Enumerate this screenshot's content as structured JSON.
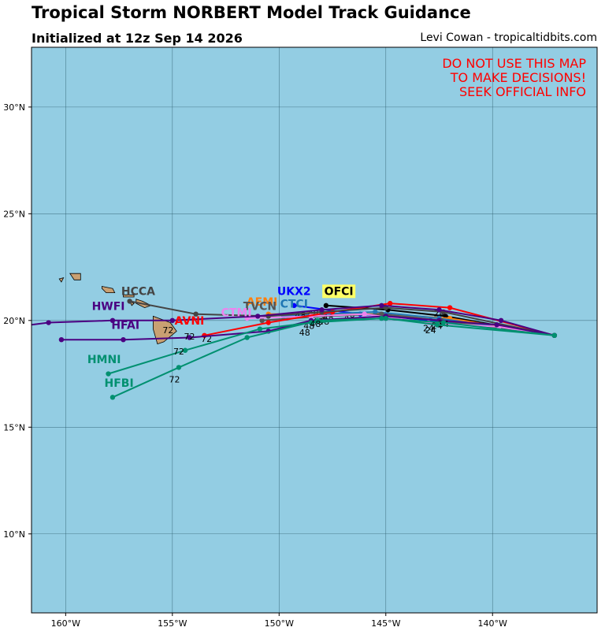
{
  "header": {
    "title": "Tropical Storm NORBERT Model Track Guidance",
    "init": "Initialized at 12z Sep 14 2026",
    "credit": "Levi Cowan - tropicaltidbits.com"
  },
  "warning": [
    "DO NOT USE THIS MAP",
    "TO MAKE DECISIONS!",
    "SEEK OFFICIAL INFO"
  ],
  "colors": {
    "ocean": "#93cde3",
    "land": "#c9a072",
    "warning": "#ff0000"
  },
  "map": {
    "lon_range": [
      -161.6,
      -135.1
    ],
    "lat_range": [
      6.3,
      32.8
    ],
    "lon_ticks": [
      -160,
      -155,
      -150,
      -145,
      -140
    ],
    "lon_tick_labels": [
      "160°W",
      "155°W",
      "150°W",
      "145°W",
      "140°W"
    ],
    "lat_ticks": [
      10,
      15,
      20,
      25,
      30
    ],
    "lat_tick_labels": [
      "10°N",
      "15°N",
      "20°N",
      "25°N",
      "30°N"
    ]
  },
  "islands": [
    [
      [
        -159.8,
        22.2
      ],
      [
        -159.3,
        22.2
      ],
      [
        -159.3,
        21.9
      ],
      [
        -159.6,
        21.9
      ]
    ],
    [
      [
        -160.3,
        21.95
      ],
      [
        -160.1,
        22.0
      ],
      [
        -160.2,
        21.8
      ]
    ],
    [
      [
        -158.3,
        21.6
      ],
      [
        -157.8,
        21.5
      ],
      [
        -157.7,
        21.3
      ],
      [
        -158.1,
        21.3
      ],
      [
        -158.3,
        21.5
      ]
    ],
    [
      [
        -157.3,
        21.2
      ],
      [
        -156.8,
        21.2
      ],
      [
        -156.8,
        21.1
      ],
      [
        -157.3,
        21.1
      ]
    ],
    [
      [
        -157.0,
        20.9
      ],
      [
        -156.8,
        20.8
      ],
      [
        -156.9,
        20.7
      ]
    ],
    [
      [
        -156.7,
        21.0
      ],
      [
        -156.4,
        20.9
      ],
      [
        -156.0,
        20.7
      ],
      [
        -156.3,
        20.6
      ],
      [
        -156.7,
        20.8
      ]
    ],
    [
      [
        -155.9,
        20.2
      ],
      [
        -155.1,
        19.9
      ],
      [
        -154.8,
        19.5
      ],
      [
        -155.4,
        19.0
      ],
      [
        -155.7,
        18.9
      ],
      [
        -155.9,
        19.6
      ]
    ]
  ],
  "models": [
    {
      "name": "OFCI",
      "color": "#000000",
      "points": [
        [
          -137.1,
          19.3
        ],
        [
          -142.2,
          20.2
        ],
        [
          -144.9,
          20.5
        ],
        [
          -147.8,
          20.7
        ]
      ],
      "hour_labels": [
        {
          "t": "24",
          "lon": -142.5,
          "lat": 20.2
        }
      ],
      "name_lon": -147.2,
      "name_lat": 21.2,
      "name_bg": "#ffff66"
    },
    {
      "name": "UKX2",
      "color": "#0000ff",
      "points": [
        [
          -137.1,
          19.3
        ],
        [
          -139.9,
          19.7
        ],
        [
          -142.9,
          20.0
        ],
        [
          -146.2,
          20.3
        ],
        [
          -149.3,
          20.7
        ]
      ],
      "hour_labels": [
        {
          "t": "24",
          "lon": -143.0,
          "lat": 19.5
        },
        {
          "t": "48",
          "lon": -146.7,
          "lat": 20.0
        }
      ],
      "name_lon": -149.3,
      "name_lat": 21.2
    },
    {
      "name": "AEMI",
      "color": "#ff7f0e",
      "points": [
        [
          -137.1,
          19.3
        ],
        [
          -142.0,
          20.1
        ],
        [
          -145.3,
          20.3
        ],
        [
          -148.6,
          20.3
        ],
        [
          -150.5,
          20.3
        ]
      ],
      "hour_labels": [
        {
          "t": "48",
          "lon": -148.4,
          "lat": 20.2
        }
      ],
      "name_lon": -150.8,
      "name_lat": 20.7
    },
    {
      "name": "CTCI",
      "color": "#1f77b4",
      "points": [
        [
          -137.1,
          19.3
        ],
        [
          -142.5,
          20.1
        ],
        [
          -145.5,
          20.4
        ],
        [
          -148.0,
          20.3
        ],
        [
          -149.8,
          20.2
        ]
      ],
      "hour_labels": [
        {
          "t": "48",
          "lon": -149.0,
          "lat": 20.1
        }
      ],
      "name_lon": -149.3,
      "name_lat": 20.6
    },
    {
      "name": "TVCN",
      "color": "#555555",
      "points": [
        [
          -137.1,
          19.3
        ],
        [
          -142.4,
          20.0
        ],
        [
          -145.2,
          20.3
        ],
        [
          -147.9,
          20.2
        ],
        [
          -150.8,
          20.0
        ]
      ],
      "hour_labels": [
        {
          "t": "48",
          "lon": -147.7,
          "lat": 20.0
        }
      ],
      "name_lon": -150.9,
      "name_lat": 20.5
    },
    {
      "name": "CTMI",
      "color": "#ee82ee",
      "points": [
        [
          -137.1,
          19.3
        ],
        [
          -139.7,
          19.7
        ],
        [
          -143.0,
          19.9
        ],
        [
          -146.0,
          20.3
        ],
        [
          -148.5,
          20.2
        ],
        [
          -151.5,
          20.1
        ]
      ],
      "hour_labels": [
        {
          "t": "48",
          "lon": -148.2,
          "lat": 19.8
        }
      ],
      "name_lon": -152.0,
      "name_lat": 20.2
    },
    {
      "name": "AVNI",
      "color": "#ff0000",
      "points": [
        [
          -137.1,
          19.3
        ],
        [
          -142.0,
          20.6
        ],
        [
          -144.8,
          20.8
        ],
        [
          -147.5,
          20.4
        ],
        [
          -150.5,
          19.9
        ],
        [
          -153.5,
          19.3
        ]
      ],
      "hour_labels": [
        {
          "t": "48",
          "lon": -147.9,
          "lat": 19.8
        },
        {
          "t": "72",
          "lon": -153.4,
          "lat": 19.0
        }
      ],
      "name_lon": -154.2,
      "name_lat": 19.8
    },
    {
      "name": "HCCA",
      "color": "#444444",
      "points": [
        [
          -137.1,
          19.3
        ],
        [
          -142.3,
          20.4
        ],
        [
          -145.0,
          20.6
        ],
        [
          -148.0,
          20.4
        ],
        [
          -150.5,
          20.2
        ],
        [
          -153.9,
          20.3
        ],
        [
          -157.0,
          20.9
        ]
      ],
      "hour_labels": [],
      "name_lon": -156.6,
      "name_lat": 21.2
    },
    {
      "name": "HWFI",
      "color": "#4b0082",
      "points": [
        [
          -137.1,
          19.3
        ],
        [
          -139.6,
          20.0
        ],
        [
          -142.5,
          20.5
        ],
        [
          -145.2,
          20.7
        ],
        [
          -148.0,
          20.5
        ],
        [
          -151.0,
          20.2
        ],
        [
          -155.0,
          20.0
        ],
        [
          -157.8,
          20.0
        ],
        [
          -160.8,
          19.9
        ],
        [
          -163.0,
          19.8
        ]
      ],
      "hour_labels": [],
      "name_lon": -158.0,
      "name_lat": 20.5
    },
    {
      "name": "HFAI",
      "color": "#4b0082",
      "points": [
        [
          -137.1,
          19.3
        ],
        [
          -139.8,
          19.8
        ],
        [
          -142.5,
          20.0
        ],
        [
          -145.0,
          20.2
        ],
        [
          -148.5,
          20.0
        ],
        [
          -150.5,
          19.5
        ],
        [
          -154.2,
          19.2
        ],
        [
          -157.3,
          19.1
        ],
        [
          -160.2,
          19.1
        ]
      ],
      "hour_labels": [
        {
          "t": "24",
          "lon": -142.3,
          "lat": 19.7
        },
        {
          "t": "48",
          "lon": -148.6,
          "lat": 19.6
        },
        {
          "t": "72",
          "lon": -155.2,
          "lat": 19.4
        }
      ],
      "name_lon": -157.2,
      "name_lat": 19.6
    },
    {
      "name": "HMNI",
      "color": "#009070",
      "points": [
        [
          -137.1,
          19.3
        ],
        [
          -142.3,
          19.9
        ],
        [
          -145.2,
          20.1
        ],
        [
          -148.5,
          19.9
        ],
        [
          -150.9,
          19.6
        ],
        [
          -154.4,
          18.6
        ],
        [
          -158.0,
          17.5
        ]
      ],
      "hour_labels": [
        {
          "t": "24",
          "lon": -142.6,
          "lat": 19.6
        },
        {
          "t": "48",
          "lon": -148.8,
          "lat": 19.3
        },
        {
          "t": "72",
          "lon": -154.2,
          "lat": 19.1
        }
      ],
      "name_lon": -158.2,
      "name_lat": 18.0
    },
    {
      "name": "HFBI",
      "color": "#009070",
      "points": [
        [
          -137.1,
          19.3
        ],
        [
          -142.6,
          19.8
        ],
        [
          -145.0,
          20.1
        ],
        [
          -148.2,
          20.0
        ],
        [
          -151.5,
          19.2
        ],
        [
          -154.7,
          17.8
        ],
        [
          -157.8,
          16.4
        ]
      ],
      "hour_labels": [
        {
          "t": "24",
          "lon": -142.9,
          "lat": 19.4
        },
        {
          "t": "48",
          "lon": -148.3,
          "lat": 19.7
        },
        {
          "t": "72",
          "lon": -154.7,
          "lat": 18.4
        },
        {
          "t": "72",
          "lon": -154.9,
          "lat": 17.1
        }
      ],
      "name_lon": -157.5,
      "name_lat": 16.9
    }
  ]
}
